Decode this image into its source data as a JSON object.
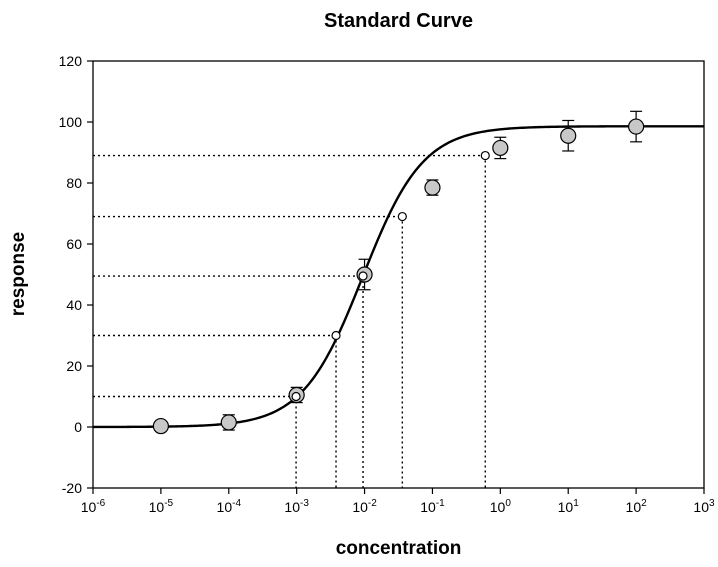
{
  "chart_data": {
    "type": "scatter",
    "title": "Standard Curve",
    "xlabel": "concentration",
    "ylabel": "response",
    "x_scale": "log10",
    "xlim": [
      1e-06,
      1000
    ],
    "ylim": [
      -20,
      120
    ],
    "x_tick_labels": [
      {
        "base": "10",
        "exp": "-6"
      },
      {
        "base": "10",
        "exp": "-5"
      },
      {
        "base": "10",
        "exp": "-4"
      },
      {
        "base": "10",
        "exp": "-3"
      },
      {
        "base": "10",
        "exp": "-2"
      },
      {
        "base": "10",
        "exp": "-1"
      },
      {
        "base": "10",
        "exp": "0"
      },
      {
        "base": "10",
        "exp": "1"
      },
      {
        "base": "10",
        "exp": "2"
      },
      {
        "base": "10",
        "exp": "3"
      }
    ],
    "y_tick_labels": [
      "-20",
      "0",
      "20",
      "40",
      "60",
      "80",
      "100",
      "120"
    ],
    "grid": false,
    "curve": {
      "model": "four-parameter logistic",
      "bottom": 0,
      "top": 98.6,
      "ec50": 0.0094,
      "hill_slope": 0.98,
      "color": "#000000"
    },
    "series": [
      {
        "marker": "filled circle",
        "color": "#c8c8c8",
        "points": [
          {
            "x": 1e-05,
            "y": 0.3,
            "err": 0
          },
          {
            "x": 0.0001,
            "y": 1.5,
            "err": 2.5
          },
          {
            "x": 0.001,
            "y": 10.5,
            "err": 2.5
          },
          {
            "x": 0.01,
            "y": 50,
            "err": 5
          },
          {
            "x": 0.1,
            "y": 78.5,
            "err": 2.5
          },
          {
            "x": 1,
            "y": 91.5,
            "err": 3.5
          },
          {
            "x": 10,
            "y": 95.5,
            "err": 5
          },
          {
            "x": 100,
            "y": 98.5,
            "err": 5
          }
        ]
      },
      {
        "marker": "open circle",
        "color": "#ffffff",
        "points": [
          {
            "x": 0.00098,
            "y": 10
          },
          {
            "x": 0.0038,
            "y": 30
          },
          {
            "x": 0.0095,
            "y": 49.5
          },
          {
            "x": 0.036,
            "y": 69
          },
          {
            "x": 0.6,
            "y": 89
          }
        ]
      }
    ]
  }
}
